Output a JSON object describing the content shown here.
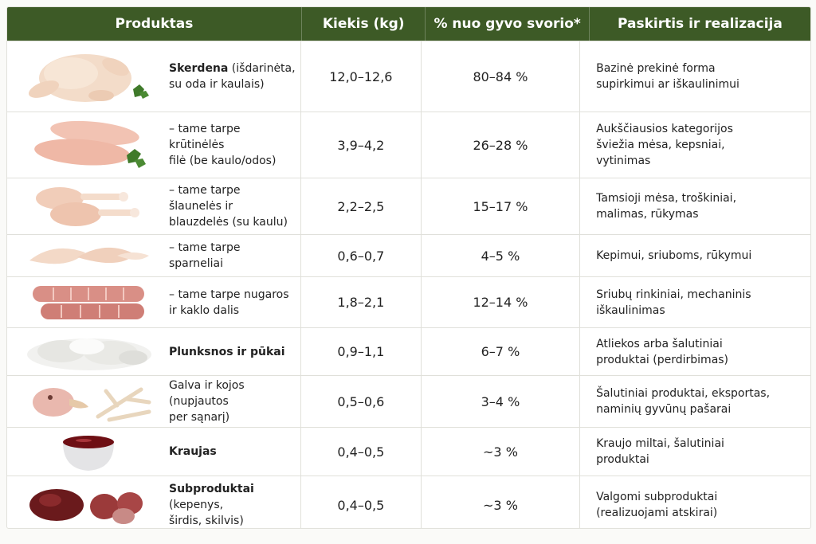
{
  "header": {
    "product": "Produktas",
    "qty": "Kiekis (kg)",
    "pct": "% nuo gyvo svorio*",
    "use": "Paskirtis ir realizacija"
  },
  "rows": [
    {
      "icon": "whole-chicken-icon",
      "name_bold": "Skerdena",
      "name_rest": " (išdarinėta,\nsu oda ir kaulais)",
      "qty": "12,0–12,6",
      "pct": "80–84 %",
      "use": "Bazinė prekinė forma\nsupirkimui ar iškaulinimui"
    },
    {
      "icon": "breast-fillet-icon",
      "name_bold": "",
      "name_rest": "– tame tarpe krūtinėlės\nfilė (be kaulo/odos)",
      "qty": "3,9–4,2",
      "pct": "26–28 %",
      "use": "Aukščiausios kategorijos\nšviežia mėsa, kepsniai,\nvytinimas"
    },
    {
      "icon": "drumsticks-icon",
      "name_bold": "",
      "name_rest": "– tame tarpe šlaunelės ir\nblauzdelės (su kaulu)",
      "qty": "2,2–2,5",
      "pct": "15–17 %",
      "use": "Tamsioji mėsa, troškiniai,\nmalimas, rūkymas"
    },
    {
      "icon": "wings-icon",
      "name_bold": "",
      "name_rest": "– tame tarpe sparneliai",
      "qty": "0,6–0,7",
      "pct": "4–5 %",
      "use": "Kepimui, sriuboms, rūkymui"
    },
    {
      "icon": "necks-icon",
      "name_bold": "",
      "name_rest": "– tame tarpe nugaros\nir kaklo dalis",
      "qty": "1,8–2,1",
      "pct": "12–14 %",
      "use": "Sriubų rinkiniai, mechaninis\niškaulinimas"
    },
    {
      "icon": "feathers-icon",
      "name_bold": "Plunksnos ir pūkai",
      "name_rest": "",
      "qty": "0,9–1,1",
      "pct": "6–7 %",
      "use": "Atliekos arba šalutiniai\nproduktai (perdirbimas)"
    },
    {
      "icon": "head-feet-icon",
      "name_bold": "",
      "name_rest": "Galva ir kojos (nupjautos\nper sąnarį)",
      "qty": "0,5–0,6",
      "pct": "3–4 %",
      "use": "Šalutiniai produktai, eksportas,\nnaminių gyvūnų pašarai"
    },
    {
      "icon": "blood-bowl-icon",
      "name_bold": "Kraujas",
      "name_rest": "",
      "qty": "0,4–0,5",
      "pct": "~3 %",
      "use": "Kraujo miltai, šalutiniai\nproduktai"
    },
    {
      "icon": "offal-icon",
      "name_bold": "Subproduktai",
      "name_rest": " (kepenys,\nširdis, skilvis)",
      "qty": "0,4–0,5",
      "pct": "~3 %",
      "use": "Valgomi subproduktai\n(realizuojami atskirai)"
    }
  ]
}
